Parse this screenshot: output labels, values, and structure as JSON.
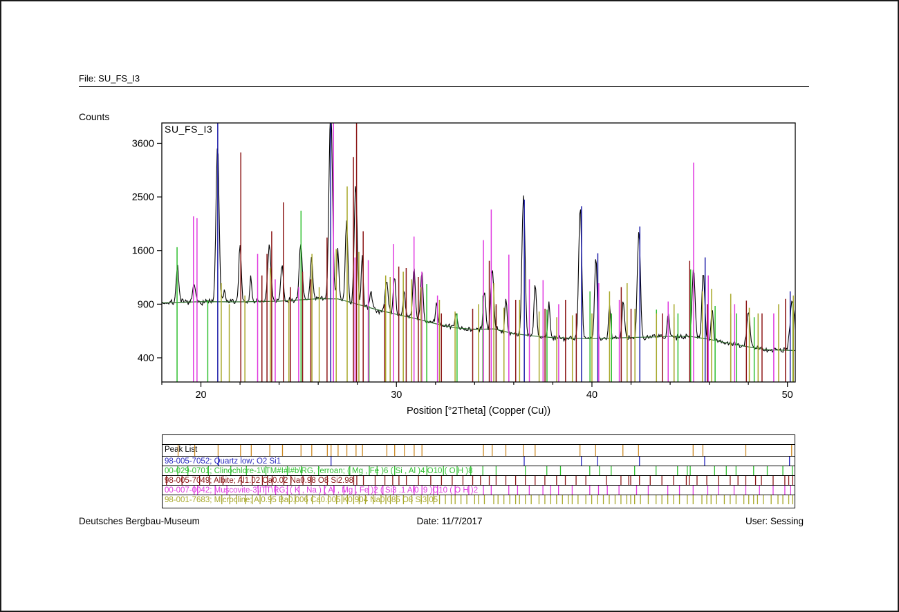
{
  "header": {
    "file_label": "File: SU_FS_I3"
  },
  "footer": {
    "left": "Deutsches Bergbau-Museum",
    "center": "Date: 11/7/2017",
    "right": "User: Sessing"
  },
  "chart_data": {
    "type": "line",
    "title": "SU_FS_I3",
    "sample_label": "SU_FS_I3",
    "xlabel": "Position [°2Theta] (Copper (Cu))",
    "ylabel": "Counts",
    "x_range": [
      18,
      50.4
    ],
    "x_major_ticks": [
      20,
      30,
      40,
      50
    ],
    "x_minor_ticks": [
      18,
      22,
      24,
      26,
      28,
      32,
      34,
      36,
      38,
      42,
      44,
      46,
      48
    ],
    "y_scale": "sqrt",
    "y_ticks": [
      3600,
      2500,
      1600,
      900,
      400
    ],
    "y_display_range": [
      240,
      4070
    ],
    "grid": false,
    "legend": "none",
    "measured_color": "#000000",
    "background_color": "#2d6b2d",
    "noise_seed": 7,
    "noise_scale": 1.05,
    "sample_step_deg": 0.045,
    "background_curve": [
      [
        18,
        915
      ],
      [
        20,
        928
      ],
      [
        22,
        926
      ],
      [
        24,
        934
      ],
      [
        25,
        948
      ],
      [
        26,
        962
      ],
      [
        27,
        960
      ],
      [
        28,
        900
      ],
      [
        29,
        840
      ],
      [
        30,
        790
      ],
      [
        31,
        745
      ],
      [
        32,
        695
      ],
      [
        33,
        655
      ],
      [
        34,
        640
      ],
      [
        35,
        645
      ],
      [
        36,
        600
      ],
      [
        37,
        580
      ],
      [
        38,
        565
      ],
      [
        39,
        560
      ],
      [
        40,
        556
      ],
      [
        41,
        560
      ],
      [
        42,
        566
      ],
      [
        43,
        570
      ],
      [
        44,
        576
      ],
      [
        45,
        576
      ],
      [
        46,
        550
      ],
      [
        47,
        515
      ],
      [
        48,
        486
      ],
      [
        49,
        462
      ],
      [
        50,
        458
      ],
      [
        50.4,
        456
      ]
    ],
    "measured_peaks": [
      [
        18.8,
        1400,
        0.06
      ],
      [
        19.65,
        1150,
        0.06
      ],
      [
        20.85,
        3560,
        0.07
      ],
      [
        21.2,
        1050,
        0.05
      ],
      [
        22.0,
        1700,
        0.06
      ],
      [
        22.55,
        1220,
        0.05
      ],
      [
        23.5,
        1670,
        0.08
      ],
      [
        24.15,
        1400,
        0.06
      ],
      [
        25.1,
        1740,
        0.07
      ],
      [
        25.65,
        1500,
        0.06
      ],
      [
        26.64,
        4400,
        0.08
      ],
      [
        27.0,
        1650,
        0.05
      ],
      [
        27.45,
        2080,
        0.06
      ],
      [
        27.92,
        2720,
        0.07
      ],
      [
        28.25,
        1500,
        0.05
      ],
      [
        28.7,
        1080,
        0.05
      ],
      [
        29.5,
        1170,
        0.07
      ],
      [
        29.9,
        1230,
        0.06
      ],
      [
        30.4,
        1080,
        0.05
      ],
      [
        30.9,
        1340,
        0.06
      ],
      [
        31.3,
        1290,
        0.06
      ],
      [
        32.05,
        930,
        0.05
      ],
      [
        33.05,
        790,
        0.06
      ],
      [
        34.5,
        1040,
        0.06
      ],
      [
        34.9,
        1370,
        0.07
      ],
      [
        35.6,
        990,
        0.05
      ],
      [
        36.5,
        2550,
        0.07
      ],
      [
        37.1,
        1130,
        0.06
      ],
      [
        37.8,
        930,
        0.05
      ],
      [
        39.4,
        2320,
        0.07
      ],
      [
        40.2,
        1500,
        0.06
      ],
      [
        40.9,
        880,
        0.05
      ],
      [
        41.6,
        940,
        0.06
      ],
      [
        42.4,
        1930,
        0.07
      ],
      [
        43.9,
        800,
        0.05
      ],
      [
        45.2,
        1340,
        0.07
      ],
      [
        45.7,
        1280,
        0.07
      ],
      [
        46.15,
        880,
        0.05
      ],
      [
        48.0,
        800,
        0.08
      ],
      [
        50.25,
        940,
        0.1
      ]
    ],
    "phases": [
      {
        "name": "Quartz low",
        "color": "#1c1ca8",
        "lines": [
          [
            20.86,
            4300
          ],
          [
            26.64,
            4300
          ],
          [
            36.54,
            2450
          ],
          [
            39.47,
            2330
          ],
          [
            40.3,
            1560
          ],
          [
            42.45,
            1980
          ],
          [
            45.79,
            1500
          ],
          [
            50.14,
            1050
          ]
        ]
      },
      {
        "name": "Clinochlore-1MIIb, ferroan",
        "color": "#2fbf2f",
        "lines": [
          [
            18.78,
            1650
          ],
          [
            20.35,
            950
          ],
          [
            25.12,
            2250
          ],
          [
            28.6,
            880
          ],
          [
            31.55,
            1140
          ],
          [
            33.1,
            800
          ],
          [
            34.42,
            1000
          ],
          [
            35.1,
            880
          ],
          [
            37.7,
            840
          ],
          [
            39.9,
            1050
          ],
          [
            41.0,
            800
          ],
          [
            43.3,
            840
          ],
          [
            44.4,
            800
          ],
          [
            45.05,
            1330
          ],
          [
            46.3,
            880
          ],
          [
            47.4,
            800
          ],
          [
            48.3,
            760
          ],
          [
            50.28,
            920
          ]
        ]
      },
      {
        "name": "Albite",
        "color": "#8c1616",
        "lines": [
          [
            22.04,
            3400
          ],
          [
            23.12,
            1250
          ],
          [
            23.38,
            1550
          ],
          [
            23.62,
            1900
          ],
          [
            24.22,
            2400
          ],
          [
            24.58,
            1100
          ],
          [
            25.2,
            1300
          ],
          [
            25.62,
            1200
          ],
          [
            26.45,
            1800
          ],
          [
            27.8,
            3300
          ],
          [
            27.96,
            4300
          ],
          [
            28.3,
            1900
          ],
          [
            29.4,
            900
          ],
          [
            30.12,
            1370
          ],
          [
            30.5,
            1350
          ],
          [
            31.12,
            1230
          ],
          [
            32.3,
            800
          ],
          [
            33.9,
            850
          ],
          [
            34.75,
            1450
          ],
          [
            35.1,
            900
          ],
          [
            36.1,
            950
          ],
          [
            37.6,
            850
          ],
          [
            38.65,
            950
          ],
          [
            39.2,
            800
          ],
          [
            41.5,
            1100
          ],
          [
            42.0,
            850
          ],
          [
            43.6,
            800
          ],
          [
            44.2,
            760
          ],
          [
            45.0,
            1450
          ],
          [
            45.9,
            900
          ],
          [
            47.1,
            800
          ],
          [
            47.9,
            940
          ],
          [
            48.7,
            800
          ],
          [
            49.9,
            960
          ],
          [
            50.3,
            900
          ]
        ]
      },
      {
        "name": "Muscovite-3T",
        "color": "#e03ae0",
        "lines": [
          [
            19.62,
            2150
          ],
          [
            19.8,
            2120
          ],
          [
            22.9,
            1550
          ],
          [
            23.8,
            1200
          ],
          [
            25.0,
            1100
          ],
          [
            26.78,
            4300
          ],
          [
            27.88,
            1500
          ],
          [
            28.56,
            1460
          ],
          [
            29.85,
            1700
          ],
          [
            30.9,
            1815
          ],
          [
            31.3,
            1300
          ],
          [
            32.1,
            1000
          ],
          [
            34.45,
            1760
          ],
          [
            34.85,
            2270
          ],
          [
            35.75,
            1540
          ],
          [
            36.8,
            1200
          ],
          [
            37.5,
            1190
          ],
          [
            38.3,
            900
          ],
          [
            40.35,
            1150
          ],
          [
            41.4,
            950
          ],
          [
            43.9,
            930
          ],
          [
            45.2,
            3180
          ],
          [
            45.95,
            1250
          ],
          [
            47.3,
            900
          ],
          [
            49.3,
            800
          ]
        ]
      },
      {
        "name": "Microcline",
        "color": "#a8a82a",
        "lines": [
          [
            21.04,
            1150
          ],
          [
            21.45,
            900
          ],
          [
            22.25,
            1000
          ],
          [
            23.55,
            1350
          ],
          [
            24.5,
            950
          ],
          [
            25.68,
            1550
          ],
          [
            26.05,
            1100
          ],
          [
            26.92,
            1620
          ],
          [
            27.48,
            2700
          ],
          [
            28.08,
            1580
          ],
          [
            29.45,
            1250
          ],
          [
            29.68,
            1230
          ],
          [
            30.35,
            1300
          ],
          [
            30.78,
            1200
          ],
          [
            31.26,
            1100
          ],
          [
            32.2,
            950
          ],
          [
            33.0,
            820
          ],
          [
            34.2,
            900
          ],
          [
            34.98,
            1150
          ],
          [
            35.5,
            860
          ],
          [
            36.3,
            950
          ],
          [
            37.3,
            820
          ],
          [
            38.2,
            760
          ],
          [
            39.0,
            780
          ],
          [
            40.0,
            800
          ],
          [
            40.9,
            1050
          ],
          [
            41.8,
            1150
          ],
          [
            42.2,
            850
          ],
          [
            43.3,
            800
          ],
          [
            44.2,
            900
          ],
          [
            45.65,
            1050
          ],
          [
            46.12,
            1080
          ],
          [
            47.1,
            1020
          ],
          [
            48.05,
            860
          ],
          [
            48.5,
            800
          ],
          [
            49.55,
            900
          ],
          [
            50.3,
            1000
          ]
        ]
      }
    ]
  },
  "peak_table": {
    "rows": [
      {
        "label": "Peak List",
        "color": "#000000",
        "tick_color": "#cc8822",
        "ticks": [
          18.8,
          19.65,
          20.85,
          22.0,
          22.55,
          23.5,
          24.15,
          25.1,
          25.65,
          26.45,
          26.64,
          27.0,
          27.45,
          27.92,
          28.25,
          29.5,
          29.9,
          30.4,
          30.9,
          31.3,
          34.45,
          34.9,
          35.6,
          36.5,
          37.1,
          39.4,
          40.2,
          41.6,
          42.4,
          45.2,
          45.7,
          47.9,
          50.25
        ]
      },
      {
        "label": "98-005-7052; Quartz low; O2 Si1",
        "color": "#2a2ac0",
        "tick_color": "#2a2ac0",
        "ticks": [
          20.86,
          26.64,
          36.54,
          39.47,
          40.3,
          42.45,
          45.79,
          50.14
        ]
      },
      {
        "label": "00-029-0701; Clinochlore-1\\ITM#I#I#b\\RG, ferroan; ( Mg , Fe )6 ( Si , Al )4 O10 ( O H )8",
        "color": "#2fbf2f",
        "tick_color": "#2fbf2f",
        "ticks": [
          18.78,
          19.3,
          20.35,
          21.5,
          22.3,
          23.3,
          24.4,
          25.12,
          26.0,
          27.6,
          28.6,
          29.0,
          29.9,
          31.55,
          32.4,
          33.1,
          33.8,
          34.42,
          35.1,
          36.6,
          37.7,
          38.4,
          39.9,
          40.4,
          41.0,
          42.2,
          43.3,
          44.4,
          44.9,
          45.05,
          46.3,
          46.9,
          47.4,
          48.3,
          49.0,
          49.8,
          50.28
        ]
      },
      {
        "label": "98-005-7049; Albite; Al1.02 Ca0.02 Na0.98 O8 Si2.98",
        "color": "#8c1616",
        "tick_color": "#8c1616",
        "ticks": [
          18.2,
          19.0,
          19.9,
          20.4,
          21.1,
          22.04,
          22.6,
          23.12,
          23.38,
          23.62,
          24.22,
          24.58,
          25.2,
          25.62,
          26.45,
          27.8,
          27.96,
          28.3,
          28.9,
          29.4,
          29.8,
          30.12,
          30.5,
          31.12,
          31.75,
          32.3,
          32.85,
          33.4,
          33.9,
          34.3,
          34.75,
          35.1,
          35.6,
          36.1,
          36.6,
          37.1,
          37.6,
          38.2,
          38.65,
          39.2,
          39.7,
          40.75,
          41.5,
          41.9,
          42.0,
          42.45,
          43.0,
          43.6,
          44.2,
          44.85,
          45.0,
          45.4,
          45.9,
          46.5,
          47.1,
          47.5,
          47.9,
          48.4,
          48.7,
          49.3,
          49.9,
          50.1,
          50.3
        ]
      },
      {
        "label": "00-007-0042; Muscovite-3\\ITT\\RG; ( K , Na ) ( Al , Mg , Fe )2 ( Si3 .1 Al0 .9 )O10 ( O H )2",
        "color": "#e03ae0",
        "tick_color": "#e03ae0",
        "ticks": [
          19.62,
          19.8,
          20.7,
          21.3,
          22.9,
          23.3,
          23.8,
          24.4,
          25.0,
          26.3,
          26.78,
          27.3,
          27.88,
          28.56,
          28.9,
          29.3,
          29.85,
          30.9,
          31.3,
          31.9,
          32.1,
          33.0,
          33.7,
          34.45,
          34.85,
          35.75,
          36.2,
          36.8,
          37.5,
          37.9,
          38.3,
          39.0,
          39.9,
          40.35,
          40.8,
          41.4,
          42.3,
          42.9,
          43.9,
          44.5,
          45.2,
          45.95,
          46.5,
          47.3,
          47.9,
          48.6,
          49.3,
          49.9,
          50.2
        ]
      },
      {
        "label": "98-001-7683; Microcline; Al0.95 Ba0.006 Ca0.005 K0.904 Na0.085 O8 Si3.05",
        "color": "#a8a82a",
        "tick_color": "#a8a82a",
        "ticks": [
          21.04,
          21.45,
          21.8,
          22.25,
          22.6,
          23.0,
          23.55,
          24.1,
          24.5,
          24.8,
          25.4,
          25.68,
          26.05,
          26.5,
          26.92,
          27.2,
          27.48,
          27.8,
          28.08,
          28.4,
          28.8,
          29.2,
          29.45,
          29.68,
          30.0,
          30.35,
          30.78,
          31.26,
          31.6,
          31.9,
          32.2,
          32.5,
          32.8,
          33.0,
          33.3,
          33.6,
          34.0,
          34.2,
          34.5,
          34.98,
          35.2,
          35.5,
          35.8,
          36.1,
          36.3,
          36.6,
          36.9,
          37.3,
          37.6,
          37.9,
          38.2,
          38.5,
          38.8,
          39.0,
          39.3,
          39.7,
          40.0,
          40.3,
          40.6,
          40.9,
          41.2,
          41.5,
          41.8,
          42.0,
          42.2,
          42.5,
          42.9,
          43.3,
          43.6,
          43.9,
          44.2,
          44.5,
          44.9,
          45.2,
          45.65,
          45.9,
          46.12,
          46.4,
          46.8,
          47.1,
          47.4,
          47.8,
          48.05,
          48.3,
          48.5,
          48.8,
          49.2,
          49.55,
          49.8,
          50.1,
          50.3
        ]
      }
    ]
  }
}
